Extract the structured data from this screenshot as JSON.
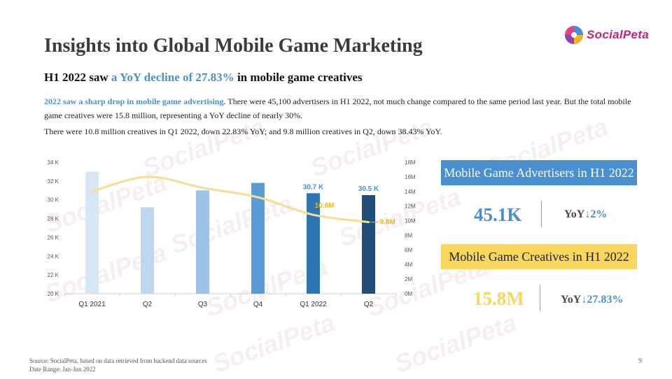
{
  "brand": {
    "name": "SocialPeta"
  },
  "page": {
    "title": "Insights into Global Mobile Game Marketing",
    "subtitle_pre": "H1 2022 saw ",
    "subtitle_highlight": "a YoY decline of 27.83%",
    "subtitle_post": " in mobile game creatives",
    "para1_highlight": "2022 saw a sharp drop in mobile game advertising.",
    "para1_text": " There were 45,100 advertisers in H1 2022, not much change compared to the same period last year. But the total mobile game creatives were 15.8 million, representing a YoY decline of nearly 30%.",
    "para2_text": "There were 10.8 million creatives in Q1 2022, down 22.83% YoY; and 9.8 million creatives in Q2, down 38.43% YoY.",
    "page_number": "9"
  },
  "kpis": {
    "advertisers": {
      "label": "Mobile Game Advertisers in H1 2022",
      "value": "45.1K",
      "yoy_label": "YoY",
      "yoy_value": "↓2%"
    },
    "creatives": {
      "label": "Mobile Game Creatives in H1 2022",
      "value": "15.8M",
      "yoy_label": "YoY",
      "yoy_value": "↓27.83%"
    }
  },
  "footer": {
    "source": "Source: SocialPeta, based on data retrieved from backend data sources",
    "date_range": "Date Range: Jan-Jun 2022"
  },
  "colors": {
    "accent_blue": "#4a8fd0",
    "accent_yellow": "#f9d65c",
    "line_yellow": "#f9dc8c",
    "label_yellow": "#f2b51c",
    "bar_colors": [
      "#d6e6f5",
      "#bdd7ee",
      "#9dc3e6",
      "#5b9bd5",
      "#2e75b6",
      "#1f4e79"
    ]
  },
  "chart_data": {
    "type": "bar",
    "categories": [
      "Q1 2021",
      "Q2",
      "Q3",
      "Q4",
      "Q1 2022",
      "Q2"
    ],
    "series": [
      {
        "values": [
          33.0,
          29.2,
          31.0,
          31.8,
          30.7,
          30.5
        ],
        "axis": "left"
      },
      {
        "values": [
          14,
          16,
          14.5,
          13.2,
          10.8,
          9.8
        ],
        "axis": "right",
        "type": "line"
      }
    ],
    "y_left": {
      "ylim": [
        20,
        34
      ],
      "ticks": [
        "20 K",
        "22 K",
        "24 K",
        "26 K",
        "28 K",
        "30 K",
        "32 K",
        "34 K"
      ]
    },
    "y_right": {
      "ylim": [
        0,
        18
      ],
      "ticks": [
        "0M",
        "2M",
        "4M",
        "6M",
        "8M",
        "10M",
        "12M",
        "14M",
        "16M",
        "18M"
      ]
    },
    "data_labels": [
      {
        "series": 0,
        "index": 4,
        "text": "30.7 K"
      },
      {
        "series": 0,
        "index": 5,
        "text": "30.5 K"
      },
      {
        "series": 1,
        "index": 4,
        "text": "10.8M"
      },
      {
        "series": 1,
        "index": 5,
        "text": "9.8M"
      }
    ],
    "grid": false
  }
}
